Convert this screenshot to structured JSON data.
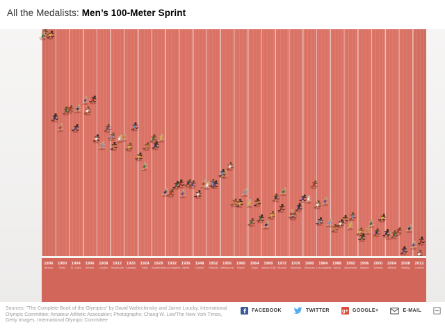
{
  "header": {
    "title_prefix": "All the Medalists: ",
    "title_bold": "Men’s 100-Meter Sprint"
  },
  "colors": {
    "track": "#da7265",
    "axis_band": "#d2665b",
    "finish_line": "#f8f5f0",
    "stage_background": "#f2f1f0",
    "label_text": "#ffffff",
    "facebook_blue": "#3d5a98",
    "twitter_blue": "#55acee",
    "google_red": "#dd4b39"
  },
  "chart_data": {
    "type": "scatter",
    "title": "All the Medalists: Men’s 100-Meter Sprint",
    "x_axis": "Olympic Games (year, host city) — one track lane per Games",
    "y_axis": "estimated seconds behind 2012 winning time (9.63 s); finish line at 0",
    "y_range_s": [
      0,
      2.4
    ],
    "reference_time_s": 9.63,
    "legend": "three medalists (gold, silver, bronze) drawn as runners per Games",
    "runner_jersey_colors": [
      "#27375d",
      "#f3f1ea",
      "#d9b63c",
      "#b03a30",
      "#6f8fc0",
      "#3c6e47",
      "#5a4a8a",
      "#c87f3a"
    ],
    "runner_skin_tones": [
      "#7a4a28",
      "#caa37e",
      "#3f2a1d"
    ],
    "games": [
      {
        "year": "1896",
        "city": "Athens",
        "medal_times_s": [
          12.0,
          12.2,
          12.6
        ]
      },
      {
        "year": "1900",
        "city": "Paris",
        "medal_times_s": [
          11.0,
          11.1,
          11.2
        ]
      },
      {
        "year": "1904",
        "city": "St. Louis",
        "medal_times_s": [
          11.0,
          11.2,
          11.2
        ]
      },
      {
        "year": "1906",
        "city": "Athens",
        "medal_times_s": [
          11.2,
          11.3,
          11.3
        ]
      },
      {
        "year": "1908",
        "city": "London",
        "medal_times_s": [
          10.8,
          10.9,
          11.0
        ]
      },
      {
        "year": "1912",
        "city": "Stockholm",
        "medal_times_s": [
          10.8,
          10.9,
          10.9
        ]
      },
      {
        "year": "1920",
        "city": "Antwerp",
        "medal_times_s": [
          10.8,
          10.9,
          11.0
        ]
      },
      {
        "year": "1924",
        "city": "Paris",
        "medal_times_s": [
          10.6,
          10.7,
          10.8
        ]
      },
      {
        "year": "1928",
        "city": "Amsterdam",
        "medal_times_s": [
          10.8,
          10.9,
          10.9
        ]
      },
      {
        "year": "1932",
        "city": "Los Angeles",
        "medal_times_s": [
          10.3,
          10.3,
          10.4
        ]
      },
      {
        "year": "1936",
        "city": "Berlin",
        "medal_times_s": [
          10.3,
          10.4,
          10.4
        ]
      },
      {
        "year": "1948",
        "city": "London",
        "medal_times_s": [
          10.3,
          10.4,
          10.4
        ]
      },
      {
        "year": "1952",
        "city": "Helsinki",
        "medal_times_s": [
          10.4,
          10.4,
          10.4
        ]
      },
      {
        "year": "1956",
        "city": "Melbourne",
        "medal_times_s": [
          10.5,
          10.5,
          10.6
        ]
      },
      {
        "year": "1960",
        "city": "Rome",
        "medal_times_s": [
          10.2,
          10.2,
          10.3
        ]
      },
      {
        "year": "1964",
        "city": "Tokyo",
        "medal_times_s": [
          10.0,
          10.2,
          10.2
        ]
      },
      {
        "year": "1968",
        "city": "Mexico City",
        "medal_times_s": [
          9.95,
          10.04,
          10.07
        ]
      },
      {
        "year": "1972",
        "city": "Munich",
        "medal_times_s": [
          10.14,
          10.24,
          10.33
        ]
      },
      {
        "year": "1976",
        "city": "Montreal",
        "medal_times_s": [
          10.06,
          10.08,
          10.14
        ]
      },
      {
        "year": "1980",
        "city": "Moscow",
        "medal_times_s": [
          10.25,
          10.25,
          10.39
        ]
      },
      {
        "year": "1984",
        "city": "Los Angeles",
        "medal_times_s": [
          9.99,
          10.19,
          10.22
        ]
      },
      {
        "year": "1988",
        "city": "Seoul",
        "medal_times_s": [
          9.92,
          9.97,
          9.99
        ]
      },
      {
        "year": "1992",
        "city": "Barcelona",
        "medal_times_s": [
          9.96,
          10.02,
          10.04
        ]
      },
      {
        "year": "1996",
        "city": "Atlanta",
        "medal_times_s": [
          9.84,
          9.89,
          9.9
        ]
      },
      {
        "year": "2000",
        "city": "Sydney",
        "medal_times_s": [
          9.87,
          9.99,
          10.04
        ]
      },
      {
        "year": "2004",
        "city": "Athens",
        "medal_times_s": [
          9.85,
          9.86,
          9.87
        ]
      },
      {
        "year": "2008",
        "city": "Beijing",
        "medal_times_s": [
          9.69,
          9.89,
          9.91
        ]
      },
      {
        "year": "2012",
        "city": "London",
        "medal_times_s": [
          9.63,
          9.75,
          9.79
        ]
      }
    ]
  },
  "footer": {
    "sources_lines": [
      "Sources: \"The Complete Book of the Olympics\" by David Wallechinsky and Jaime Loucky, International",
      "Olympic Committee; Amateur Athletic Assocation; Photographs: Chang W. Lee/The New York Times,",
      "Getty Images, International Olympic Committee"
    ]
  },
  "social": {
    "items": [
      {
        "label": "FACEBOOK"
      },
      {
        "label": "TWITTER"
      },
      {
        "label": "GOOGLE+"
      },
      {
        "label": "E-MAIL"
      }
    ]
  }
}
